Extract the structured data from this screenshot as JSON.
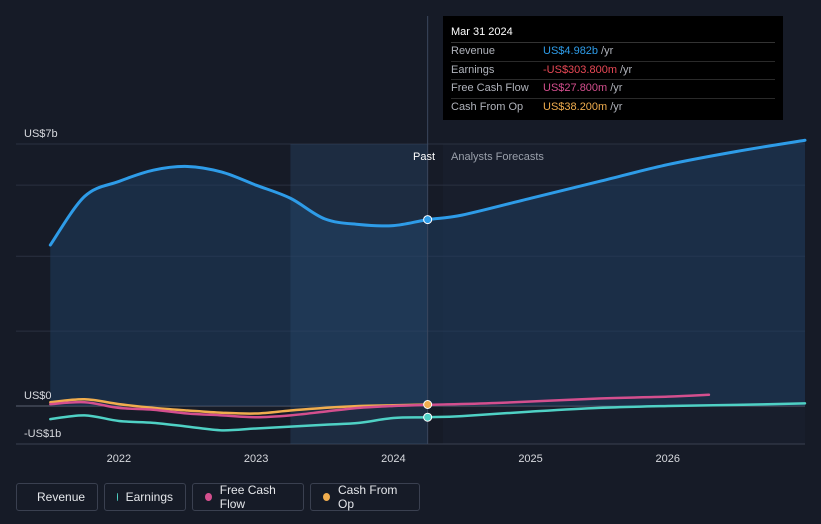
{
  "tooltip": {
    "date": "Mar 31 2024",
    "rows": [
      {
        "label": "Revenue",
        "value": "US$4.982b",
        "unit": "/yr",
        "color": "#2e9ce8"
      },
      {
        "label": "Earnings",
        "value": "-US$303.800m",
        "unit": "/yr",
        "color": "#e84855"
      },
      {
        "label": "Free Cash Flow",
        "value": "US$27.800m",
        "unit": "/yr",
        "color": "#d44f8e"
      },
      {
        "label": "Cash From Op",
        "value": "US$38.200m",
        "unit": "/yr",
        "color": "#f0ad4e"
      }
    ]
  },
  "chart_data": {
    "type": "line",
    "y_tick_labels": [
      "US$7b",
      "US$0",
      "-US$1b"
    ],
    "ylim": [
      -1,
      7
    ],
    "xlim": [
      2021.25,
      2027.0
    ],
    "x_tick_labels": [
      "2022",
      "2023",
      "2024",
      "2025",
      "2026"
    ],
    "x_ticks": [
      2022,
      2023,
      2024,
      2025,
      2026
    ],
    "past_label": "Past",
    "forecast_label": "Analysts Forecasts",
    "divider_x": 2024.25,
    "highlight_start_x": 2023.25,
    "series": [
      {
        "name": "Revenue",
        "color": "#2e9ce8",
        "points": [
          [
            2021.5,
            4.3
          ],
          [
            2021.75,
            5.6
          ],
          [
            2022.0,
            6.0
          ],
          [
            2022.25,
            6.3
          ],
          [
            2022.5,
            6.4
          ],
          [
            2022.75,
            6.25
          ],
          [
            2023.0,
            5.9
          ],
          [
            2023.25,
            5.55
          ],
          [
            2023.5,
            5.0
          ],
          [
            2023.75,
            4.85
          ],
          [
            2024.0,
            4.82
          ],
          [
            2024.25,
            4.98
          ],
          [
            2024.5,
            5.1
          ],
          [
            2025.0,
            5.55
          ],
          [
            2025.5,
            6.0
          ],
          [
            2026.0,
            6.45
          ],
          [
            2026.5,
            6.8
          ],
          [
            2027.0,
            7.1
          ]
        ]
      },
      {
        "name": "Earnings",
        "color": "#4fd1c5",
        "points": [
          [
            2021.5,
            -0.35
          ],
          [
            2021.75,
            -0.25
          ],
          [
            2022.0,
            -0.4
          ],
          [
            2022.25,
            -0.45
          ],
          [
            2022.5,
            -0.55
          ],
          [
            2022.75,
            -0.65
          ],
          [
            2023.0,
            -0.6
          ],
          [
            2023.25,
            -0.55
          ],
          [
            2023.5,
            -0.5
          ],
          [
            2023.75,
            -0.45
          ],
          [
            2024.0,
            -0.32
          ],
          [
            2024.25,
            -0.3
          ],
          [
            2024.5,
            -0.27
          ],
          [
            2025.0,
            -0.15
          ],
          [
            2025.5,
            -0.05
          ],
          [
            2026.0,
            0.0
          ],
          [
            2026.5,
            0.03
          ],
          [
            2027.0,
            0.07
          ]
        ]
      },
      {
        "name": "Free Cash Flow",
        "color": "#d44f8e",
        "points": [
          [
            2021.5,
            0.05
          ],
          [
            2021.75,
            0.1
          ],
          [
            2022.0,
            -0.05
          ],
          [
            2022.25,
            -0.1
          ],
          [
            2022.5,
            -0.2
          ],
          [
            2022.75,
            -0.25
          ],
          [
            2023.0,
            -0.3
          ],
          [
            2023.25,
            -0.25
          ],
          [
            2023.5,
            -0.15
          ],
          [
            2023.75,
            -0.05
          ],
          [
            2024.0,
            0.0
          ],
          [
            2024.25,
            0.03
          ],
          [
            2024.75,
            0.08
          ],
          [
            2025.5,
            0.2
          ],
          [
            2026.0,
            0.25
          ],
          [
            2026.3,
            0.3
          ]
        ]
      },
      {
        "name": "Cash From Op",
        "color": "#f0ad4e",
        "points": [
          [
            2021.5,
            0.1
          ],
          [
            2021.75,
            0.18
          ],
          [
            2022.0,
            0.05
          ],
          [
            2022.25,
            -0.05
          ],
          [
            2022.5,
            -0.12
          ],
          [
            2022.75,
            -0.18
          ],
          [
            2023.0,
            -0.2
          ],
          [
            2023.25,
            -0.12
          ],
          [
            2023.5,
            -0.05
          ],
          [
            2023.75,
            0.0
          ],
          [
            2024.0,
            0.02
          ],
          [
            2024.25,
            0.04
          ]
        ]
      }
    ]
  },
  "legend": [
    {
      "label": "Revenue",
      "color": "#2e9ce8"
    },
    {
      "label": "Earnings",
      "color": "#4fd1c5"
    },
    {
      "label": "Free Cash Flow",
      "color": "#d44f8e"
    },
    {
      "label": "Cash From Op",
      "color": "#f0ad4e"
    }
  ]
}
